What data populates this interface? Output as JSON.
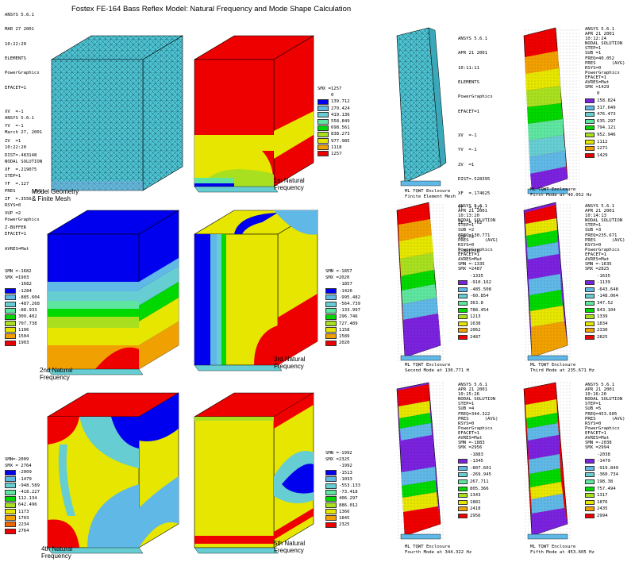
{
  "title": "Fostex FE-164 Bass Reflex Model: Natural Frequency and Mode Shape Calculation",
  "colors": {
    "blue": "#0000ee",
    "light_blue": "#5fb8e6",
    "cyan": "#66cdd2",
    "mint": "#5ee6a0",
    "green": "#00d800",
    "yellow_green": "#a8e020",
    "yellow": "#e6e600",
    "orange": "#f0a000",
    "red": "#ee0000",
    "purple": "#7a22dd"
  },
  "left": {
    "header1": [
      "ANSYS 5.6.1",
      "MAR 27 2001",
      "10:22:20",
      "ELEMENTS",
      "PowerGraphics",
      "EFACET=1",
      "",
      "XV  =-1",
      "YV  =-1",
      "ZV  =1",
      "DIST=.483148",
      "XF  =.219075",
      "YF  =.127",
      "ZF  =.3556",
      "VUP =2",
      "Z-BUFFER"
    ],
    "header2": [
      "ANSYS 5.6.1",
      "March 27, 2001",
      "10:22:20",
      "NODAL SOLUTION",
      "STEP=1",
      "PRES      (AVG)",
      "RSYS=0",
      "PowerGraphics",
      "EFACET=1",
      "AVRES=Mat"
    ],
    "legend1": {
      "smn": "SMX =1257",
      "values": [
        "0",
        "139.712",
        "279.424",
        "419.136",
        "558.849",
        "698.561",
        "838.273",
        "977.985",
        "1118",
        "1257"
      ]
    },
    "legend2": {
      "smn": "SMN =-1682",
      "smx": "SMX =1903",
      "values": [
        "-1682",
        "-1284",
        "-885.604",
        "-487.268",
        "-88.933",
        "309.402",
        "707.738",
        "1106",
        "1504",
        "1903"
      ]
    },
    "legend3": {
      "smn": "SMN =-1857",
      "smx": "SMX =2020",
      "values": [
        "-1857",
        "-1426",
        "-995.482",
        "-564.739",
        "-133.997",
        "296.746",
        "727.489",
        "1158",
        "1589",
        "2020"
      ]
    },
    "legend4": {
      "smn": "SMN=-2009",
      "smx": "SMX = 2764",
      "values": [
        "-2009",
        "-1479",
        "-948.589",
        "-418.227",
        "112.134",
        "642.496",
        "1173",
        "1703",
        "2234",
        "2764"
      ]
    },
    "legend5": {
      "smn": "SMN =-1992",
      "smx": "SMX =2325",
      "values": [
        "-1992",
        "-1513",
        "-1033",
        "-553.133",
        "-73.418",
        "406.297",
        "886.012",
        "1366",
        "1845",
        "2325"
      ]
    },
    "captions": {
      "mesh": "Model Geometry\n& Finite Mesh",
      "n1": "1st Natural\nFrequency",
      "n2": "2nd Natural\nFrequency",
      "n3": "3rd Natural\nFrequency",
      "n4": "4th Natural\nFrequency",
      "n5": "5th Natural\nFrequency"
    }
  },
  "right": {
    "mesh_info": [
      "ANSYS 5.6.1",
      "APR 21 2001",
      "10:11:11",
      "ELEMENTS",
      "PowerGraphics",
      "EFACET=1",
      "",
      "XV  =-1",
      "YV  =-1",
      "ZV  =1",
      "DIST=.528395",
      "XF  =.174625",
      "YF  =.127",
      "ZF  =.762",
      "VUP =2",
      "Z-BUFFER"
    ],
    "mesh_caption": "ML TQWT Enclosure\nFinite Element Mesh",
    "modes": [
      {
        "info": [
          "ANSYS 5.6.1",
          "APR 21 2001",
          "10:12:24",
          "NODAL SOLUTION",
          "STEP=1",
          "SUB =1",
          "FREQ=40.052",
          "PRES      (AVG)",
          "RSYS=0",
          "PowerGraphics",
          "EFACET=1",
          "AVRES=Mat",
          "SMX =1429"
        ],
        "values": [
          "0",
          "158.824",
          "317.649",
          "476.473",
          "635.297",
          "794.121",
          "952.946",
          "1112",
          "1271",
          "1429"
        ],
        "caption": "ML TQWT Enclosure\nFirst Mode at 40.052 Hz"
      },
      {
        "info": [
          "ANSYS 5.6.1",
          "APR 21 2001",
          "10:13:20",
          "NODAL SOLUTION",
          "STEP=1",
          "SUB =2",
          "FREQ=130.771",
          "PRES      (AVG)",
          "RSYS=0",
          "PowerGraphics",
          "EFACET=1",
          "AVRES=Mat",
          "SMN =-1335",
          "SMX =2487"
        ],
        "values": [
          "-1335",
          "-910.162",
          "-485.508",
          "-60.854",
          "363.8",
          "788.454",
          "1213",
          "1638",
          "2062",
          "2487"
        ],
        "caption": "ML TQWT Enclosure\nSecond Mode at 130.771 H"
      },
      {
        "info": [
          "ANSYS 5.6.1",
          "APR 21 2001",
          "10:14:13",
          "NODAL SOLUTION",
          "STEP=1",
          "SUB =3",
          "FREQ=235.671",
          "PRES      (AVG)",
          "RSYS=0",
          "PowerGraphics",
          "EFACET=1",
          "AVRES=Mat",
          "SMN =-1635",
          "SMX =2825"
        ],
        "values": [
          "-1635",
          "-1139",
          "-643.648",
          "-148.064",
          "347.52",
          "843.104",
          "1339",
          "1834",
          "2330",
          "2825"
        ],
        "caption": "ML TQWT Enclosure\nThird Mode at 235.671 Hz"
      },
      {
        "info": [
          "ANSYS 5.6.1",
          "APR 21 2001",
          "10:15:26",
          "NODAL SOLUTION",
          "STEP=1",
          "SUB =4",
          "FREQ=344.322",
          "PRES      (AVG)",
          "RSYS=0",
          "PowerGraphics",
          "EFACET=1",
          "AVRES=Mat",
          "SMN =-1883",
          "SMX =2956"
        ],
        "values": [
          "-1883",
          "-1345",
          "-807.601",
          "-269.945",
          "267.711",
          "805.366",
          "1343",
          "1881",
          "2418",
          "2956"
        ],
        "caption": "ML TQWT Enclosure\nFourth Mode at 344.322 Hz"
      },
      {
        "info": [
          "ANSYS 5.6.1",
          "APR 21 2001",
          "10:16:20",
          "NODAL SOLUTION",
          "STEP=1",
          "SUB =5",
          "FREQ=453.605",
          "PRES      (AVG)",
          "RSYS=0",
          "PowerGraphics",
          "EFACET=1",
          "AVRES=Mat",
          "SMN =-2038",
          "SMX =2994"
        ],
        "values": [
          "-2038",
          "-1479",
          "-919.849",
          "-360.734",
          "198.38",
          "757.494",
          "1317",
          "1876",
          "2435",
          "2994"
        ],
        "caption": "ML TQWT Enclosure\nFifth Mode at 453.605 Hz"
      }
    ]
  }
}
